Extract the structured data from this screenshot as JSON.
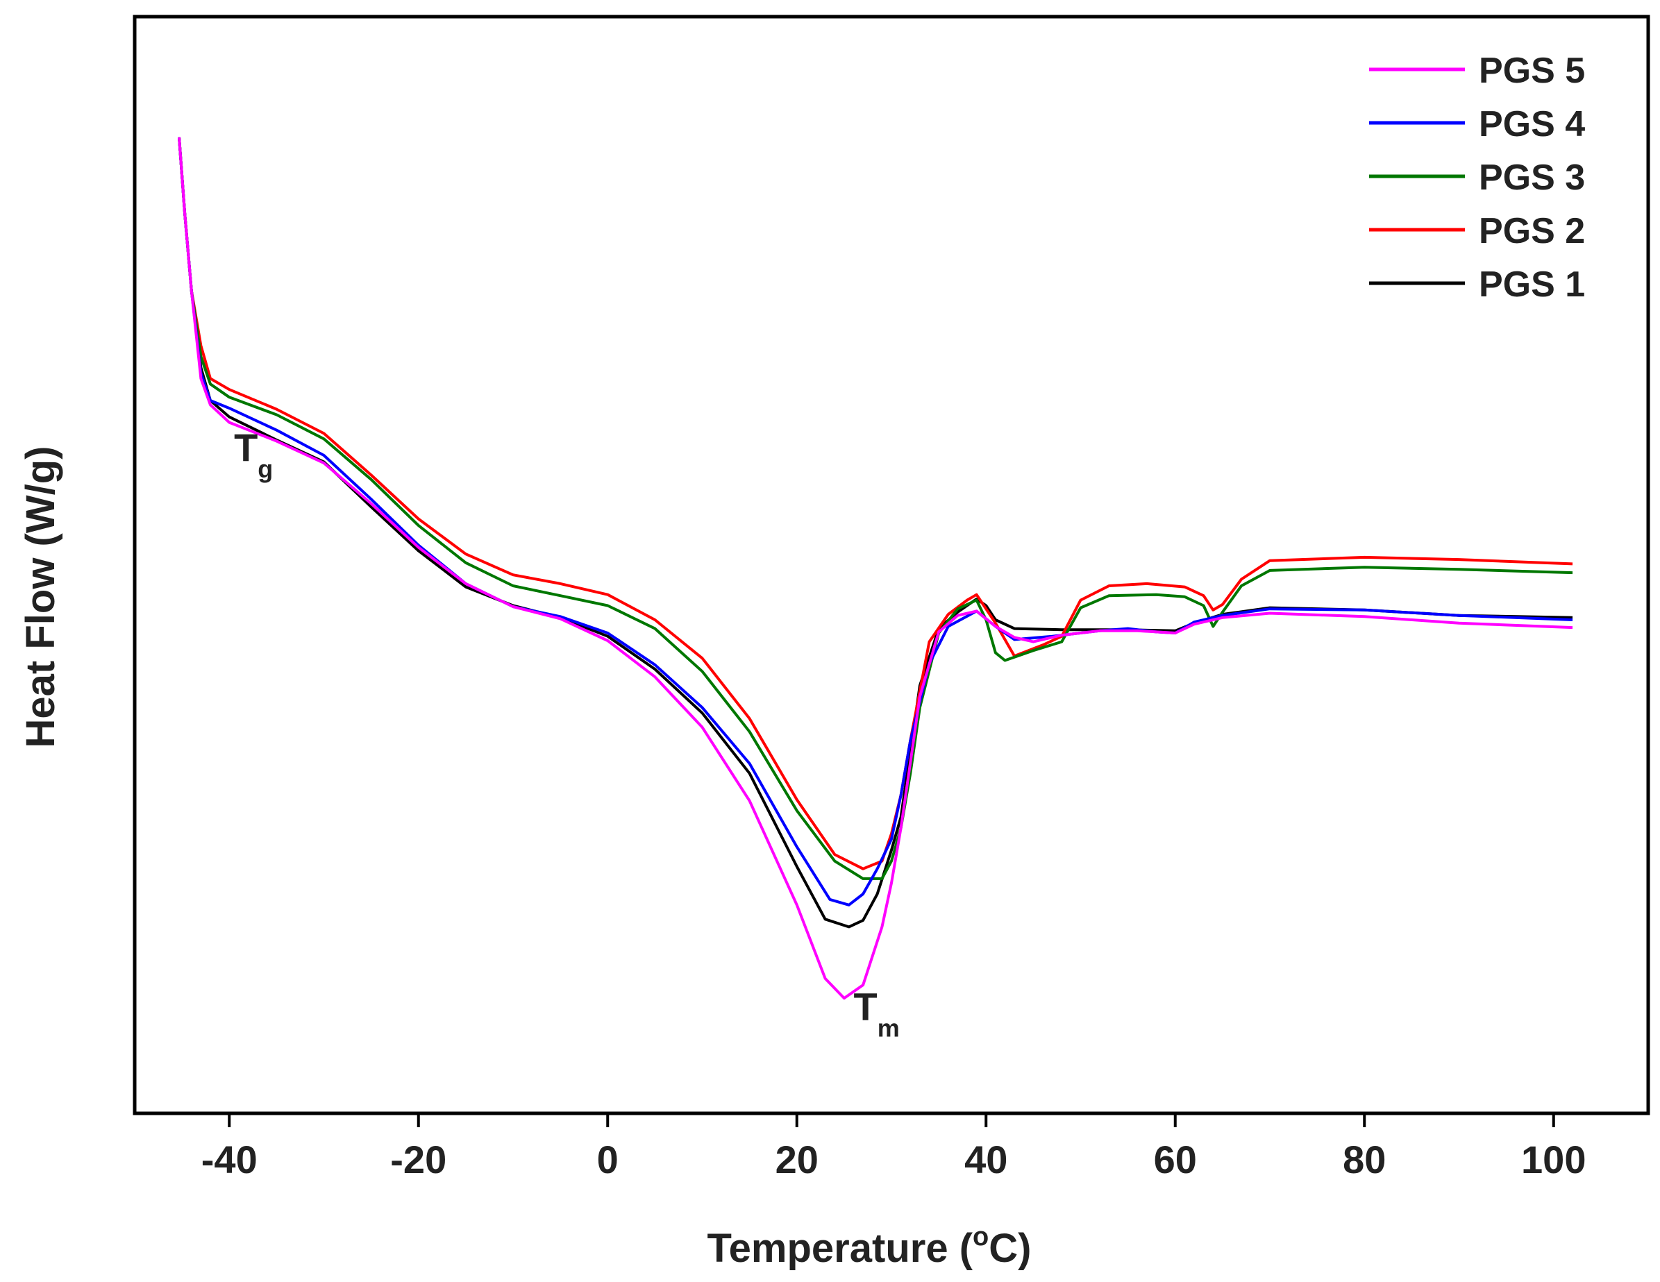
{
  "chart_data": {
    "type": "line",
    "title": "",
    "xlabel": "Temperature (",
    "xlabel_sup": "o",
    "xlabel_suffix": "C)",
    "ylabel": "Heat Flow (W/g)",
    "xlim": [
      -50,
      110
    ],
    "ylim": [
      0,
      100
    ],
    "x_ticks": [
      -40,
      -20,
      0,
      20,
      40,
      60,
      80,
      100
    ],
    "x_tick_labels": [
      "-40",
      "-20",
      "0",
      "20",
      "40",
      "60",
      "80",
      "100"
    ],
    "y_ticks": [],
    "grid": false,
    "legend_position": "top-right",
    "annotations": [
      {
        "main": "T",
        "sub": "g",
        "x": -39.5,
        "y": 59.5
      },
      {
        "main": "T",
        "sub": "m",
        "x": 26.0,
        "y": 8.5
      }
    ],
    "series": [
      {
        "name": "PGS 1",
        "color": "#000000",
        "points": [
          [
            -45.3,
            89
          ],
          [
            -44.7,
            82
          ],
          [
            -44,
            75
          ],
          [
            -43,
            68
          ],
          [
            -42,
            65
          ],
          [
            -40,
            63.5
          ],
          [
            -35,
            61.4
          ],
          [
            -30,
            59.4
          ],
          [
            -25,
            55.3
          ],
          [
            -20,
            51.3
          ],
          [
            -15,
            48
          ],
          [
            -10,
            46.3
          ],
          [
            -5,
            45.2
          ],
          [
            0,
            43.5
          ],
          [
            5,
            40.5
          ],
          [
            10,
            36.5
          ],
          [
            15,
            31
          ],
          [
            20,
            22.5
          ],
          [
            23,
            17.7
          ],
          [
            25.5,
            17
          ],
          [
            27,
            17.6
          ],
          [
            28.5,
            20
          ],
          [
            30,
            24
          ],
          [
            31,
            27
          ],
          [
            32,
            33
          ],
          [
            33,
            39
          ],
          [
            35,
            44.2
          ],
          [
            37,
            45.7
          ],
          [
            39,
            46.9
          ],
          [
            40,
            46.3
          ],
          [
            41,
            45
          ],
          [
            43,
            44.2
          ],
          [
            48,
            44.1
          ],
          [
            55,
            44.1
          ],
          [
            60,
            44
          ],
          [
            62,
            44.7
          ],
          [
            65,
            45.5
          ],
          [
            70,
            46.1
          ],
          [
            80,
            45.9
          ],
          [
            90,
            45.4
          ],
          [
            102,
            45.2
          ]
        ]
      },
      {
        "name": "PGS 2",
        "color": "#ff0000",
        "points": [
          [
            -45.3,
            89
          ],
          [
            -44.7,
            82
          ],
          [
            -44,
            75
          ],
          [
            -43,
            70
          ],
          [
            -42,
            67
          ],
          [
            -40,
            66
          ],
          [
            -35,
            64.2
          ],
          [
            -30,
            62
          ],
          [
            -25,
            58.2
          ],
          [
            -20,
            54.2
          ],
          [
            -15,
            51
          ],
          [
            -10,
            49.1
          ],
          [
            -5,
            48.3
          ],
          [
            0,
            47.3
          ],
          [
            5,
            45
          ],
          [
            10,
            41.5
          ],
          [
            15,
            36
          ],
          [
            20,
            28.6
          ],
          [
            24,
            23.6
          ],
          [
            27,
            22.3
          ],
          [
            29,
            23
          ],
          [
            30,
            25.5
          ],
          [
            31,
            29
          ],
          [
            32,
            34
          ],
          [
            34,
            43
          ],
          [
            36,
            45.5
          ],
          [
            38,
            46.8
          ],
          [
            39,
            47.3
          ],
          [
            41,
            44.7
          ],
          [
            43,
            41.7
          ],
          [
            46,
            42.7
          ],
          [
            48,
            43.5
          ],
          [
            50,
            46.8
          ],
          [
            53,
            48.1
          ],
          [
            57,
            48.3
          ],
          [
            61,
            48
          ],
          [
            63,
            47.2
          ],
          [
            64,
            45.9
          ],
          [
            65,
            46.4
          ],
          [
            67,
            48.7
          ],
          [
            70,
            50.4
          ],
          [
            80,
            50.7
          ],
          [
            90,
            50.5
          ],
          [
            102,
            50.1
          ]
        ]
      },
      {
        "name": "PGS 3",
        "color": "#007700",
        "points": [
          [
            -45.3,
            89
          ],
          [
            -44.7,
            82
          ],
          [
            -44,
            75
          ],
          [
            -43,
            69
          ],
          [
            -42,
            66.5
          ],
          [
            -40,
            65.3
          ],
          [
            -35,
            63.7
          ],
          [
            -30,
            61.5
          ],
          [
            -25,
            57.8
          ],
          [
            -20,
            53.6
          ],
          [
            -15,
            50.2
          ],
          [
            -10,
            48.1
          ],
          [
            -5,
            47.2
          ],
          [
            0,
            46.3
          ],
          [
            5,
            44.2
          ],
          [
            10,
            40.3
          ],
          [
            15,
            34.8
          ],
          [
            20,
            27.6
          ],
          [
            24,
            23
          ],
          [
            27,
            21.4
          ],
          [
            29,
            21.4
          ],
          [
            30,
            23
          ],
          [
            31,
            26
          ],
          [
            32,
            31
          ],
          [
            33,
            37
          ],
          [
            35,
            43.8
          ],
          [
            37,
            46
          ],
          [
            39,
            46.8
          ],
          [
            40,
            45
          ],
          [
            41,
            42
          ],
          [
            42,
            41.3
          ],
          [
            45,
            42.2
          ],
          [
            48,
            43
          ],
          [
            50,
            46.1
          ],
          [
            53,
            47.2
          ],
          [
            58,
            47.3
          ],
          [
            61,
            47.1
          ],
          [
            63,
            46.3
          ],
          [
            64,
            44.4
          ],
          [
            65,
            45.7
          ],
          [
            67,
            48.1
          ],
          [
            70,
            49.5
          ],
          [
            80,
            49.8
          ],
          [
            90,
            49.6
          ],
          [
            102,
            49.3
          ]
        ]
      },
      {
        "name": "PGS 4",
        "color": "#0000ff",
        "points": [
          [
            -45.3,
            89
          ],
          [
            -44.7,
            82
          ],
          [
            -44,
            75
          ],
          [
            -43,
            67.5
          ],
          [
            -42,
            65
          ],
          [
            -40,
            64.3
          ],
          [
            -35,
            62.3
          ],
          [
            -30,
            60
          ],
          [
            -25,
            56
          ],
          [
            -20,
            51.8
          ],
          [
            -15,
            48.3
          ],
          [
            -10,
            46.2
          ],
          [
            -5,
            45.3
          ],
          [
            0,
            43.8
          ],
          [
            5,
            40.9
          ],
          [
            10,
            37
          ],
          [
            15,
            31.9
          ],
          [
            20,
            24.3
          ],
          [
            23.5,
            19.5
          ],
          [
            25.5,
            19
          ],
          [
            27,
            20
          ],
          [
            28.5,
            22.3
          ],
          [
            30,
            25
          ],
          [
            31,
            29
          ],
          [
            32,
            34
          ],
          [
            34,
            41
          ],
          [
            36,
            44.4
          ],
          [
            39,
            45.8
          ],
          [
            41,
            44.4
          ],
          [
            43,
            43.2
          ],
          [
            47,
            43.5
          ],
          [
            52,
            44
          ],
          [
            55,
            44.2
          ],
          [
            58,
            43.9
          ],
          [
            60,
            43.8
          ],
          [
            62,
            44.8
          ],
          [
            65,
            45.4
          ],
          [
            70,
            46
          ],
          [
            80,
            45.9
          ],
          [
            90,
            45.4
          ],
          [
            102,
            45
          ]
        ]
      },
      {
        "name": "PGS 5",
        "color": "#ff00ff",
        "points": [
          [
            -45.3,
            89
          ],
          [
            -44.7,
            82
          ],
          [
            -44,
            75
          ],
          [
            -43,
            67
          ],
          [
            -42,
            64.6
          ],
          [
            -40,
            63
          ],
          [
            -35,
            61.3
          ],
          [
            -30,
            59.3
          ],
          [
            -25,
            55.6
          ],
          [
            -20,
            51.6
          ],
          [
            -15,
            48.3
          ],
          [
            -10,
            46.2
          ],
          [
            -5,
            45.1
          ],
          [
            0,
            43.1
          ],
          [
            5,
            39.8
          ],
          [
            10,
            35.2
          ],
          [
            15,
            28.5
          ],
          [
            20,
            19
          ],
          [
            23,
            12.3
          ],
          [
            25,
            10.5
          ],
          [
            27,
            11.7
          ],
          [
            29,
            17
          ],
          [
            30,
            21
          ],
          [
            31,
            26
          ],
          [
            32,
            32
          ],
          [
            33,
            38
          ],
          [
            35,
            43.9
          ],
          [
            37,
            45.4
          ],
          [
            39,
            45.8
          ],
          [
            41,
            44.4
          ],
          [
            43,
            43.4
          ],
          [
            45,
            43
          ],
          [
            48,
            43.6
          ],
          [
            52,
            44
          ],
          [
            56,
            44
          ],
          [
            60,
            43.8
          ],
          [
            62,
            44.6
          ],
          [
            65,
            45.2
          ],
          [
            70,
            45.6
          ],
          [
            80,
            45.3
          ],
          [
            90,
            44.7
          ],
          [
            102,
            44.3
          ]
        ]
      }
    ]
  }
}
